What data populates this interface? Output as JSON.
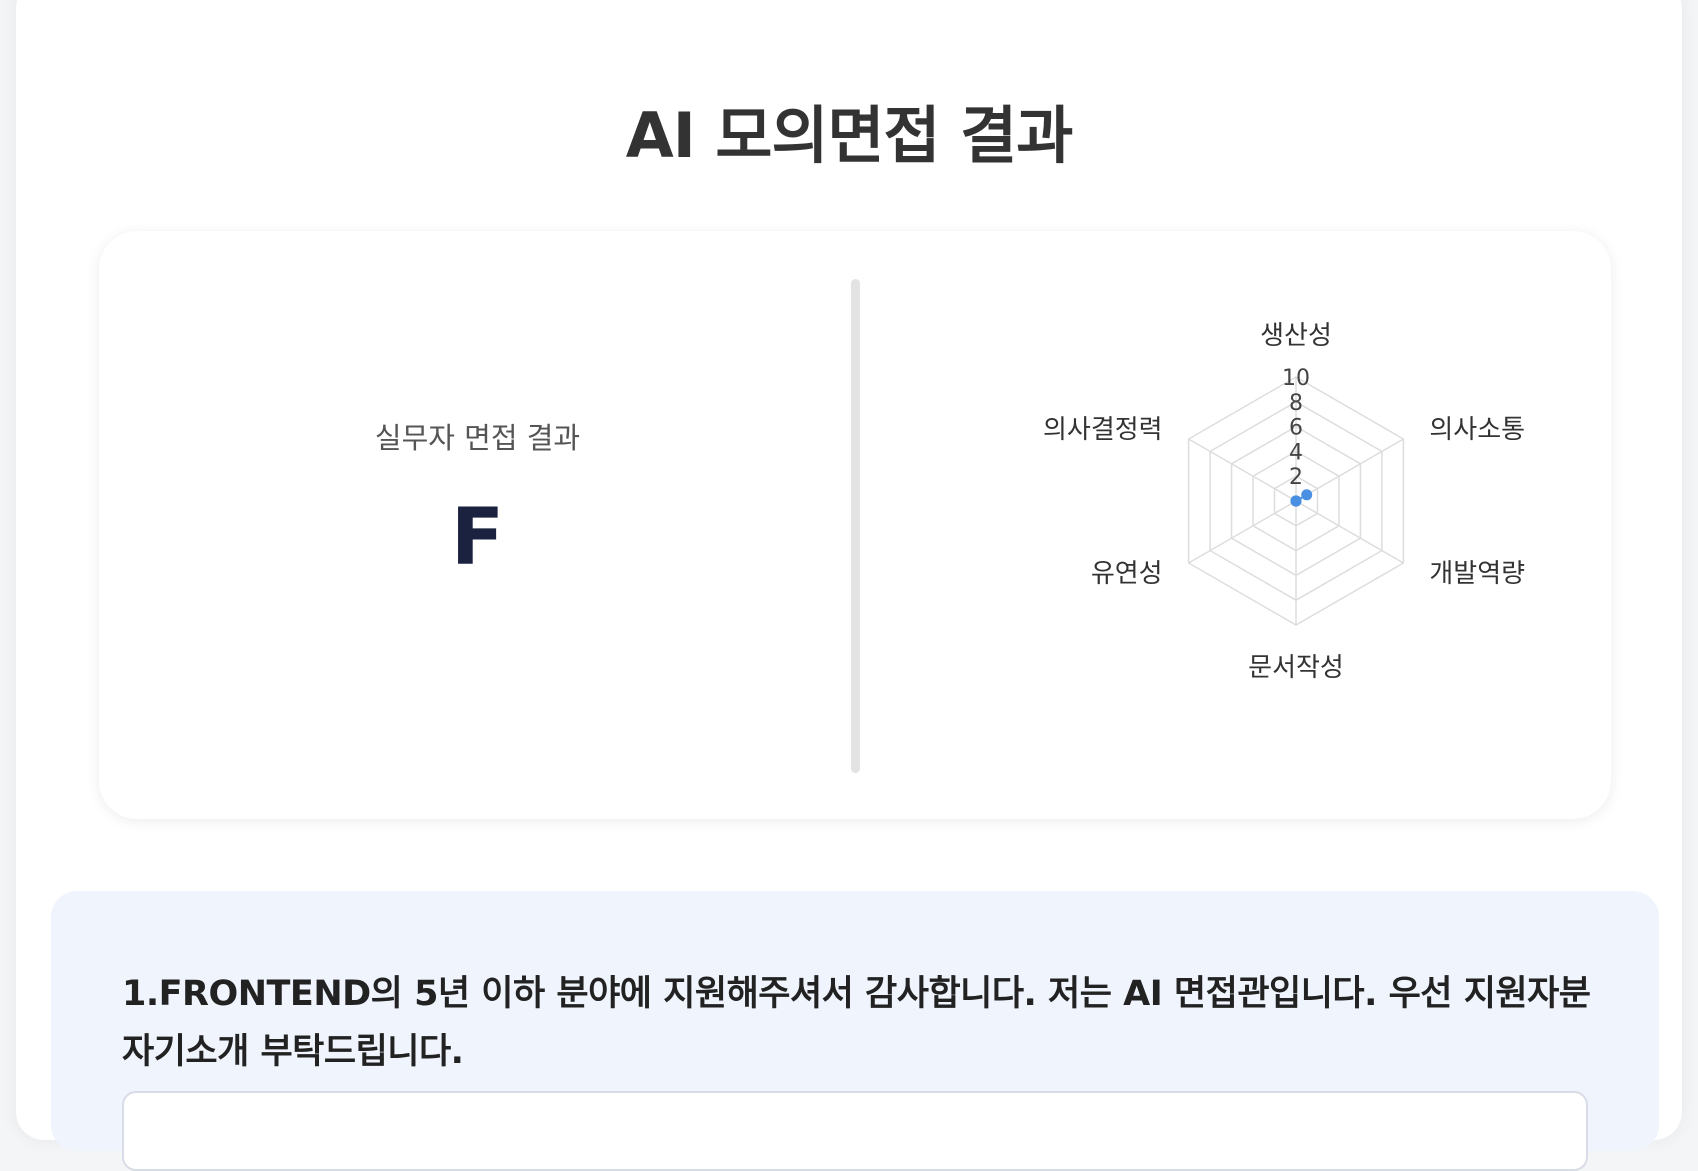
{
  "page": {
    "title": "AI 모의면접 결과"
  },
  "result": {
    "label": "실무자 면접 결과",
    "grade": "F"
  },
  "chart_data": {
    "type": "radar",
    "categories": [
      "생산성",
      "의사소통",
      "개발역량",
      "문서작성",
      "유연성",
      "의사결정력"
    ],
    "series": [
      {
        "values": [
          0,
          1,
          0,
          0,
          0,
          0
        ]
      }
    ],
    "ticks": [
      "2",
      "4",
      "6",
      "8",
      "10"
    ],
    "rlim": [
      0,
      10
    ],
    "grid": true,
    "point_color": "#4a90e2",
    "grid_color": "#dddddd"
  },
  "question": {
    "text": "1.FRONTEND의 5년 이하 분야에 지원해주셔서 감사합니다. 저는 AI 면접관입니다. 우선 지원자분 자기소개 부탁드립니다."
  },
  "colors": {
    "panel_bg": "#eff4fd",
    "grade": "#1b2240"
  }
}
